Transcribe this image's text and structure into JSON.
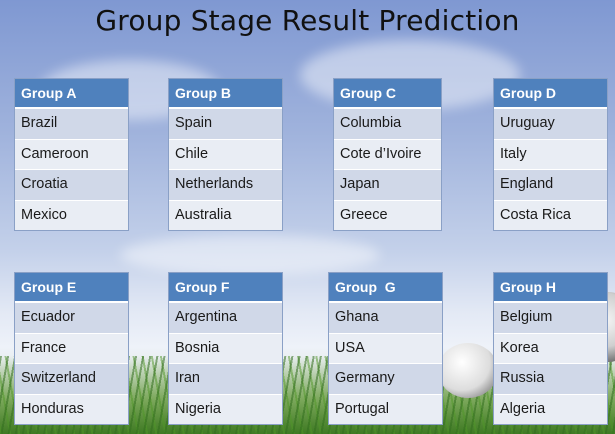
{
  "title": "Group Stage Result Prediction",
  "groups": [
    {
      "name": "Group A",
      "teams": [
        "Brazil",
        "Cameroon",
        "Croatia",
        "Mexico"
      ]
    },
    {
      "name": "Group B",
      "teams": [
        "Spain",
        "Chile",
        "Netherlands",
        "Australia"
      ]
    },
    {
      "name": "Group C",
      "teams": [
        "Columbia",
        "Cote d’Ivoire",
        "Japan",
        "Greece"
      ]
    },
    {
      "name": "Group D",
      "teams": [
        "Uruguay",
        "Italy",
        "England",
        "Costa Rica"
      ]
    },
    {
      "name": "Group E",
      "teams": [
        "Ecuador",
        "France",
        "Switzerland",
        "Honduras"
      ]
    },
    {
      "name": "Group F",
      "teams": [
        "Argentina",
        "Bosnia",
        "Iran",
        "Nigeria"
      ]
    },
    {
      "name": "Group  G",
      "teams": [
        "Ghana",
        "USA",
        "Germany",
        "Portugal"
      ]
    },
    {
      "name": "Group H",
      "teams": [
        "Belgium",
        "Korea",
        "Russia",
        "Algeria"
      ]
    }
  ],
  "colors": {
    "header": "#4f81bd",
    "row_light": "#e9edf4",
    "row_dark": "#d0d8e8"
  }
}
